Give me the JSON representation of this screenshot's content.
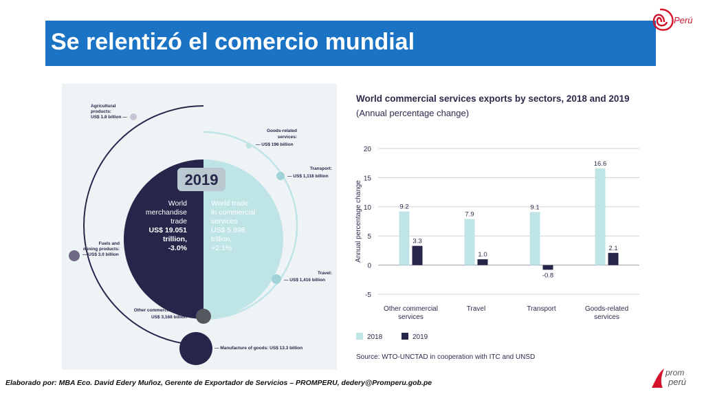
{
  "slide": {
    "title": "Se relentizó el comercio mundial",
    "footer": "Elaborado por: MBA Eco. David Edery Muñoz, Gerente de Exportador de Servicios – PROMPERU, dedery@Promperu.gob.pe",
    "logo_top": "Perú",
    "logo_bottom_line1": "prom",
    "logo_bottom_line2": "perú"
  },
  "colors": {
    "title_bg": "#1a73c5",
    "series_2018": "#bfe4e6",
    "series_2019": "#26264a",
    "logo_red": "#d4122a"
  },
  "infographic": {
    "year": "2019",
    "merch_label": [
      "World",
      "merchandise",
      "trade",
      "US$ 19.051",
      "trillion,",
      "-3.0%"
    ],
    "services_label": [
      "World trade",
      "in commercial",
      "services",
      "US$ 5.898",
      "trillion,",
      "+2.1%"
    ],
    "agri": [
      "Agricultural",
      "products:",
      "US$ 1.8 billion —"
    ],
    "fuels": [
      "Fuels and",
      "mining products:",
      "— US$ 3.0 billion"
    ],
    "manufacture": "— Manufacture of goods: US$ 13.3 billion",
    "goods_related": [
      "Goods-related",
      "services:",
      "— US$ 196 billion"
    ],
    "transport": [
      "Transport:",
      "— US$ 1,118 billion"
    ],
    "travel": [
      "Travel:",
      "— US$ 1,416 billion"
    ],
    "other_services": [
      "Other commercial services:",
      "US$ 3,168 billion —"
    ]
  },
  "chart_data": {
    "type": "bar",
    "title": "World commercial services exports by sectors, 2018 and 2019",
    "subtitle": "(Annual percentage change)",
    "ylabel": "Annual percentage change",
    "categories": [
      [
        "Other commercial",
        "services"
      ],
      [
        "Travel"
      ],
      [
        "Transport"
      ],
      [
        "Goods-related",
        "services"
      ]
    ],
    "series": [
      {
        "name": "2018",
        "values": [
          9.2,
          7.9,
          9.1,
          16.6
        ]
      },
      {
        "name": "2019",
        "values": [
          3.3,
          1.0,
          -0.8,
          2.1
        ]
      }
    ],
    "value_labels": [
      [
        "9.2",
        "7.9",
        "9.1",
        "16.6"
      ],
      [
        "3.3",
        "1.0",
        "-0.8",
        "2.1"
      ]
    ],
    "ylim": [
      -5,
      20
    ],
    "yticks": [
      20,
      15,
      10,
      5,
      0,
      -5
    ],
    "grid": true,
    "legend": "bottom-left",
    "source": "Source: WTO-UNCTAD in cooperation with ITC and UNSD"
  }
}
